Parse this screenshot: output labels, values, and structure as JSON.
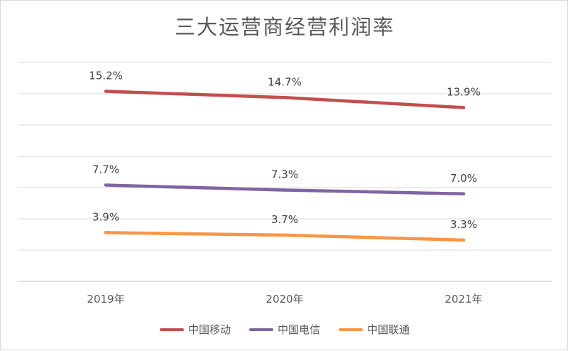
{
  "chart_data": {
    "type": "line",
    "title": "三大运营商经营利润率",
    "categories": [
      "2019年",
      "2020年",
      "2021年"
    ],
    "unit": "%",
    "ylim": [
      0,
      17.5
    ],
    "grid": true,
    "legend_position": "bottom",
    "series": [
      {
        "name": "中国移动",
        "values": [
          15.2,
          14.7,
          13.9
        ],
        "labels": [
          "15.2%",
          "14.7%",
          "13.9%"
        ],
        "color": "#c0504d"
      },
      {
        "name": "中国电信",
        "values": [
          7.7,
          7.3,
          7.0
        ],
        "labels": [
          "7.7%",
          "7.3%",
          "7.0%"
        ],
        "color": "#8064a2"
      },
      {
        "name": "中国联通",
        "values": [
          3.9,
          3.7,
          3.3
        ],
        "labels": [
          "3.9%",
          "3.7%",
          "3.3%"
        ],
        "color": "#f79646"
      }
    ]
  }
}
